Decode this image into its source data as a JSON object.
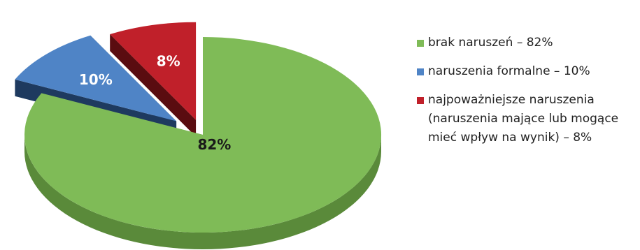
{
  "chart_data": {
    "type": "pie",
    "style": "3d-exploded",
    "title": "",
    "slices": [
      {
        "label": "brak naruszeń",
        "value": 82,
        "data_label": "82%",
        "color": "#7fbb57",
        "side_color": "#5a8a3a"
      },
      {
        "label": "naruszenia formalne",
        "value": 10,
        "data_label": "10%",
        "color": "#4f84c6",
        "side_color": "#1e3a5f"
      },
      {
        "label": "najpoważniejsze naruszenia (naruszenia mające lub mogące mieć wpływ na wynik)",
        "value": 8,
        "data_label": "8%",
        "color": "#c0202a",
        "side_color": "#5a0c10"
      }
    ],
    "legend": {
      "placement": "right",
      "entries": [
        {
          "lines": [
            "brak naruszeń – 82%"
          ],
          "color": "#7fbb57"
        },
        {
          "lines": [
            "naruszenia formalne – 10%"
          ],
          "color": "#4f84c6"
        },
        {
          "lines": [
            "najpoważniejsze naruszenia",
            "(naruszenia mające lub mogące",
            "mieć wpływ na wynik) – 8%"
          ],
          "color": "#c0202a"
        }
      ]
    }
  }
}
